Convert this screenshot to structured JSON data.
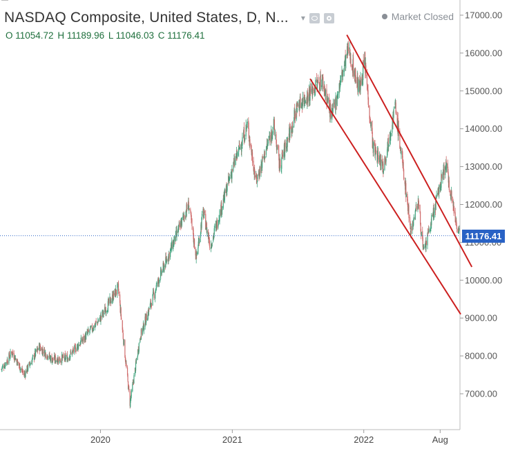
{
  "header": {
    "title": "NASDAQ Composite, United States, D, N...",
    "status": "Market Closed",
    "ohlc": {
      "o": "O 11054.72",
      "h": "H 11189.96",
      "l": "L 11046.03",
      "c": "C 11176.41"
    }
  },
  "price_tag": "11176.41",
  "colors": {
    "up": "#3fa27d",
    "down": "#cf6b6b",
    "channel": "#cc1f1f",
    "price_line": "#2962c5",
    "axis": "#999999"
  },
  "chart_data": {
    "type": "candlestick",
    "title": "NASDAQ Composite, United States, D, N...",
    "ylim": [
      6400,
      17300
    ],
    "y_ticks": [
      7000,
      8000,
      9000,
      10000,
      11000,
      12000,
      13000,
      14000,
      15000,
      16000,
      17000
    ],
    "y_tick_labels": [
      "7000.00",
      "8000.00",
      "9000.00",
      "10000.00",
      "11000.00",
      "12000.00",
      "13000.00",
      "14000.00",
      "15000.00",
      "16000.00",
      "17000.00"
    ],
    "x_ticks": [
      "2020",
      "2021",
      "2022",
      "Aug"
    ],
    "x_tick_dates": [
      "2020-01-01",
      "2021-01-01",
      "2022-01-01",
      "2022-08-01"
    ],
    "x_range": [
      "2019-04-01",
      "2022-09-25"
    ],
    "last_close": 11176.41,
    "trend": [
      {
        "date": "2019-04-01",
        "value": 7650
      },
      {
        "date": "2019-05-01",
        "value": 8100
      },
      {
        "date": "2019-06-03",
        "value": 7500
      },
      {
        "date": "2019-07-15",
        "value": 8240
      },
      {
        "date": "2019-08-20",
        "value": 7900
      },
      {
        "date": "2019-10-01",
        "value": 7950
      },
      {
        "date": "2019-11-20",
        "value": 8500
      },
      {
        "date": "2020-01-01",
        "value": 9000
      },
      {
        "date": "2020-02-19",
        "value": 9800
      },
      {
        "date": "2020-03-23",
        "value": 6750
      },
      {
        "date": "2020-04-20",
        "value": 8500
      },
      {
        "date": "2020-06-10",
        "value": 10000
      },
      {
        "date": "2020-09-02",
        "value": 12000
      },
      {
        "date": "2020-09-23",
        "value": 10600
      },
      {
        "date": "2020-10-12",
        "value": 11800
      },
      {
        "date": "2020-11-01",
        "value": 10900
      },
      {
        "date": "2020-12-31",
        "value": 12900
      },
      {
        "date": "2021-02-12",
        "value": 14100
      },
      {
        "date": "2021-03-08",
        "value": 12600
      },
      {
        "date": "2021-04-26",
        "value": 14100
      },
      {
        "date": "2021-05-12",
        "value": 13000
      },
      {
        "date": "2021-07-01",
        "value": 14600
      },
      {
        "date": "2021-09-07",
        "value": 15300
      },
      {
        "date": "2021-10-04",
        "value": 14300
      },
      {
        "date": "2021-11-19",
        "value": 16100
      },
      {
        "date": "2021-12-20",
        "value": 15000
      },
      {
        "date": "2022-01-03",
        "value": 15800
      },
      {
        "date": "2022-01-27",
        "value": 13500
      },
      {
        "date": "2022-02-24",
        "value": 13000
      },
      {
        "date": "2022-03-29",
        "value": 14600
      },
      {
        "date": "2022-05-12",
        "value": 11300
      },
      {
        "date": "2022-06-01",
        "value": 12100
      },
      {
        "date": "2022-06-16",
        "value": 10700
      },
      {
        "date": "2022-08-16",
        "value": 13100
      },
      {
        "date": "2022-09-13",
        "value": 11600
      },
      {
        "date": "2022-09-25",
        "value": 11176
      }
    ],
    "channel_lines": [
      {
        "start": {
          "date": "2021-08-05",
          "value": 15320
        },
        "end": {
          "date": "2022-09-27",
          "value": 9100
        }
      },
      {
        "start": {
          "date": "2021-11-15",
          "value": 16480
        },
        "end": {
          "date": "2022-10-28",
          "value": 10350
        }
      }
    ]
  }
}
